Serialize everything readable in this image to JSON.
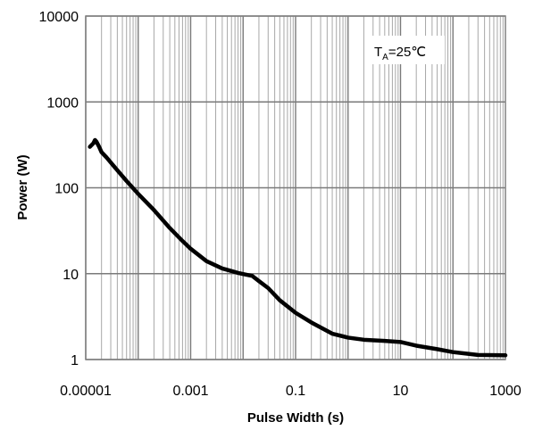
{
  "chart_data": {
    "type": "line",
    "xlabel": "Pulse Width (s)",
    "ylabel": "Power (W)",
    "x_scale": "log",
    "y_scale": "log",
    "xlim": [
      1e-05,
      1000
    ],
    "ylim": [
      1,
      10000
    ],
    "x_ticks": [
      "0.00001",
      "0.001",
      "0.1",
      "10",
      "1000"
    ],
    "x_tick_values": [
      1e-05,
      0.001,
      0.1,
      10,
      1000
    ],
    "y_ticks": [
      "10000",
      "1000",
      "100",
      "10",
      "1"
    ],
    "y_tick_values": [
      10000,
      1000,
      100,
      10,
      1
    ],
    "grid": true,
    "annotation": {
      "main": "T",
      "sub": "A",
      "rest": "=25℃",
      "position": "top-right"
    },
    "series": [
      {
        "color": "#000000",
        "x": [
          1.2e-05,
          1.4e-05,
          1.5e-05,
          1.6e-05,
          1.8e-05,
          2e-05,
          2.5e-05,
          4e-05,
          6e-05,
          0.0001,
          0.0002,
          0.0004,
          0.0007,
          0.001,
          0.002,
          0.004,
          0.008,
          0.01,
          0.015,
          0.02,
          0.03,
          0.05,
          0.1,
          0.2,
          0.5,
          1,
          2,
          5,
          10,
          20,
          50,
          100,
          300,
          1000
        ],
        "y": [
          300,
          330,
          360,
          345,
          300,
          260,
          225,
          160,
          120,
          85,
          55,
          34,
          24,
          19.5,
          14,
          11.5,
          10.2,
          9.9,
          9.4,
          8.2,
          6.8,
          4.9,
          3.5,
          2.7,
          2.0,
          1.8,
          1.7,
          1.65,
          1.6,
          1.45,
          1.32,
          1.22,
          1.13,
          1.12
        ]
      }
    ]
  }
}
